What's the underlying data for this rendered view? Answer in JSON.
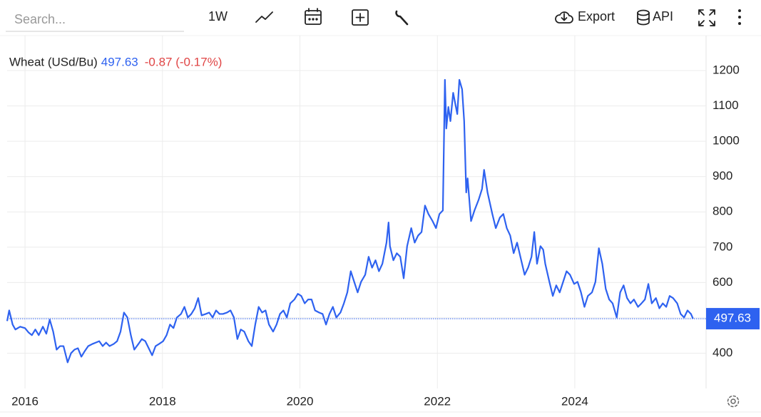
{
  "toolbar": {
    "search_placeholder": "Search...",
    "interval": "1W",
    "export": "Export",
    "api": "API"
  },
  "chart_data": {
    "type": "line",
    "last_price": 497.63,
    "change_label": "-0.87 (-0.17%)",
    "xlim": [
      2015.74,
      2025.91
    ],
    "xticks": [
      2016,
      2018,
      2020,
      2022,
      2024
    ],
    "ylim": [
      300,
      1300
    ],
    "yticks": [
      400,
      500,
      600,
      700,
      800,
      900,
      1000,
      1100,
      1200
    ],
    "grid": true,
    "series": [
      {
        "name": "Wheat (USd/Bu)",
        "color": "#2e62f0",
        "x": [
          2015.74,
          2015.77,
          2015.82,
          2015.86,
          2015.93,
          2016.0,
          2016.05,
          2016.1,
          2016.15,
          2016.2,
          2016.26,
          2016.31,
          2016.36,
          2016.41,
          2016.46,
          2016.51,
          2016.56,
          2016.62,
          2016.67,
          2016.72,
          2016.77,
          2016.82,
          2016.87,
          2016.92,
          2016.98,
          2017.03,
          2017.08,
          2017.13,
          2017.18,
          2017.23,
          2017.29,
          2017.34,
          2017.39,
          2017.44,
          2017.49,
          2017.54,
          2017.59,
          2017.65,
          2017.7,
          2017.75,
          2017.8,
          2017.85,
          2017.9,
          2017.95,
          2018.01,
          2018.06,
          2018.11,
          2018.16,
          2018.21,
          2018.27,
          2018.32,
          2018.37,
          2018.42,
          2018.47,
          2018.52,
          2018.57,
          2018.63,
          2018.68,
          2018.73,
          2018.78,
          2018.83,
          2018.88,
          2018.94,
          2018.99,
          2019.04,
          2019.09,
          2019.14,
          2019.19,
          2019.25,
          2019.3,
          2019.35,
          2019.4,
          2019.45,
          2019.5,
          2019.55,
          2019.61,
          2019.66,
          2019.71,
          2019.76,
          2019.81,
          2019.86,
          2019.92,
          2019.97,
          2020.02,
          2020.07,
          2020.12,
          2020.17,
          2020.22,
          2020.28,
          2020.33,
          2020.38,
          2020.43,
          2020.48,
          2020.53,
          2020.59,
          2020.64,
          2020.69,
          2020.74,
          2020.79,
          2020.84,
          2020.89,
          2020.95,
          2021.0,
          2021.05,
          2021.1,
          2021.15,
          2021.2,
          2021.26,
          2021.29,
          2021.31,
          2021.36,
          2021.41,
          2021.46,
          2021.51,
          2021.56,
          2021.62,
          2021.67,
          2021.72,
          2021.77,
          2021.82,
          2021.87,
          2021.93,
          2021.98,
          2022.03,
          2022.08,
          2022.11,
          2022.13,
          2022.16,
          2022.19,
          2022.23,
          2022.29,
          2022.32,
          2022.36,
          2022.39,
          2022.42,
          2022.44,
          2022.49,
          2022.54,
          2022.6,
          2022.65,
          2022.68,
          2022.73,
          2022.8,
          2022.85,
          2022.91,
          2022.96,
          2023.01,
          2023.06,
          2023.11,
          2023.16,
          2023.22,
          2023.27,
          2023.32,
          2023.37,
          2023.41,
          2023.45,
          2023.5,
          2023.54,
          2023.57,
          2023.63,
          2023.68,
          2023.73,
          2023.78,
          2023.83,
          2023.88,
          2023.93,
          2023.99,
          2024.04,
          2024.09,
          2024.14,
          2024.19,
          2024.25,
          2024.3,
          2024.35,
          2024.4,
          2024.45,
          2024.5,
          2024.55,
          2024.61,
          2024.66,
          2024.71,
          2024.76,
          2024.81,
          2024.86,
          2024.92,
          2024.97,
          2025.02,
          2025.07,
          2025.12,
          2025.18,
          2025.23,
          2025.28,
          2025.33,
          2025.38,
          2025.43,
          2025.49,
          2025.54,
          2025.59,
          2025.64,
          2025.69,
          2025.72
        ],
        "values": [
          491,
          521,
          481,
          467,
          475,
          471,
          459,
          451,
          467,
          451,
          475,
          455,
          495,
          461,
          410,
          420,
          420,
          374,
          400,
          410,
          414,
          390,
          406,
          420,
          426,
          430,
          434,
          420,
          430,
          420,
          426,
          434,
          461,
          515,
          501,
          451,
          410,
          426,
          440,
          434,
          414,
          394,
          420,
          426,
          434,
          451,
          481,
          471,
          501,
          511,
          531,
          501,
          511,
          527,
          556,
          507,
          511,
          515,
          501,
          521,
          511,
          511,
          515,
          521,
          501,
          440,
          467,
          461,
          434,
          420,
          481,
          531,
          515,
          521,
          481,
          461,
          481,
          511,
          521,
          501,
          541,
          552,
          568,
          562,
          541,
          552,
          552,
          521,
          515,
          511,
          481,
          511,
          531,
          501,
          515,
          541,
          572,
          632,
          602,
          572,
          602,
          622,
          673,
          642,
          663,
          632,
          653,
          713,
          770,
          703,
          663,
          683,
          673,
          612,
          703,
          754,
          713,
          733,
          743,
          818,
          794,
          774,
          754,
          794,
          804,
          1174,
          1036,
          1097,
          1057,
          1137,
          1077,
          1174,
          1147,
          1057,
          855,
          895,
          774,
          804,
          834,
          865,
          919,
          855,
          794,
          754,
          784,
          794,
          754,
          733,
          683,
          713,
          663,
          622,
          642,
          673,
          743,
          653,
          703,
          693,
          653,
          602,
          562,
          592,
          572,
          602,
          632,
          622,
          596,
          602,
          572,
          531,
          562,
          572,
          602,
          697,
          653,
          582,
          552,
          541,
          501,
          572,
          592,
          556,
          541,
          552,
          531,
          541,
          552,
          596,
          541,
          556,
          527,
          541,
          531,
          562,
          556,
          541,
          511,
          501,
          521,
          511,
          497.63
        ]
      }
    ]
  }
}
